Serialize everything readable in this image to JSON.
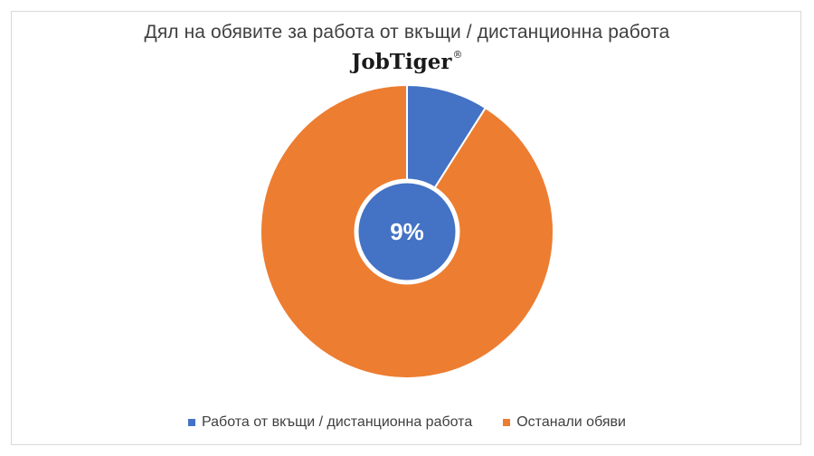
{
  "chart_data": {
    "type": "pie",
    "title": "Дял на обявите за работа от вкъщи / дистанционна работа",
    "brand": "JobTiger",
    "brand_mark": "®",
    "center_label": "9%",
    "slices": [
      {
        "name": "Работа от вкъщи / дистанционна работа",
        "value": 9,
        "color": "#4472c4"
      },
      {
        "name": "Останали обяви",
        "value": 91,
        "color": "#ed7d31"
      }
    ],
    "legend_position": "bottom"
  }
}
